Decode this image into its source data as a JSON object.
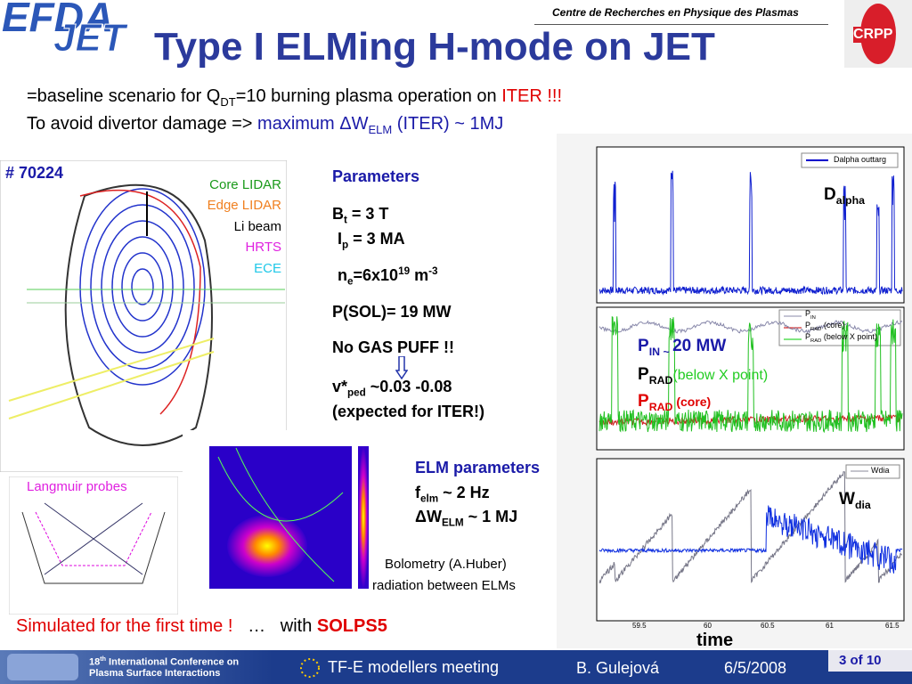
{
  "header": {
    "logo_left_top": "EFDA",
    "logo_left_bottom": "JET",
    "org": "Centre de Recherches en Physique des Plasmas",
    "logo_right": "CRPP",
    "title": "Type I ELMing H-mode on JET"
  },
  "intro": {
    "line1": [
      "=baseline scenario for Q",
      "DT",
      "=10 burning plasma operation on ",
      "ITER !!!"
    ],
    "line2": [
      " To avoid divertor damage => ",
      "maximum ΔW",
      "ELM",
      " (ITER) ~ 1MJ"
    ]
  },
  "figure": {
    "shot": "# 70224",
    "diagnostics": [
      "Core LIDAR",
      "Edge LIDAR",
      "Li beam",
      "HRTS",
      "ECE"
    ],
    "probes": "Langmuir probes",
    "bolometry": [
      "Bolometry (A.Huber)",
      "radiation between ELMs"
    ]
  },
  "parameters": {
    "heading": "Parameters",
    "bt": [
      "B",
      "t",
      " = 3 T"
    ],
    "ip": [
      "I",
      "p",
      " = 3 MA"
    ],
    "ne": [
      "n",
      "e",
      "=6x10",
      "19",
      " m",
      "-3"
    ],
    "psol": "P(SOL)= 19 MW",
    "gas": "No GAS PUFF !!",
    "nu": [
      "v*",
      "ped",
      " ~0.03 -0.08"
    ],
    "expected": "(expected for ITER!)"
  },
  "elm": {
    "heading": "ELM parameters",
    "f": [
      "f",
      "elm",
      " ~ 2 Hz"
    ],
    "dw": [
      "ΔW",
      "ELM",
      " ~ 1 MJ"
    ]
  },
  "traces": {
    "dalpha": [
      "D",
      "alpha"
    ],
    "pin": [
      "P",
      "IN",
      " ~ ",
      "20 MW"
    ],
    "prad_x": [
      "P",
      "RAD",
      "(below X point)"
    ],
    "prad_core": [
      "P",
      "RAD",
      " (core)"
    ],
    "wdia": [
      "W",
      "dia"
    ],
    "time": "time",
    "legend": [
      "Dalpha outtarg",
      "P",
      "IN",
      "P",
      "RAD",
      " (core)",
      "P",
      "RAD",
      " (below X point)",
      "Wdia"
    ],
    "xticks": [
      "59.5",
      "60",
      "60.5",
      "61",
      "61.5"
    ]
  },
  "bottom": {
    "simulated": "Simulated for the first time !",
    "ellipsis": "…",
    "with": "with",
    "code": "SOLPS5"
  },
  "footer": {
    "conf_num": "18",
    "conf_sup": "th",
    "conf_line1": " International Conference on",
    "conf_line2": "Plasma Surface Interactions",
    "meeting": "TF-E modellers meeting",
    "author": "B. Gulejová",
    "date": "6/5/2008",
    "page": "3 of 10"
  }
}
